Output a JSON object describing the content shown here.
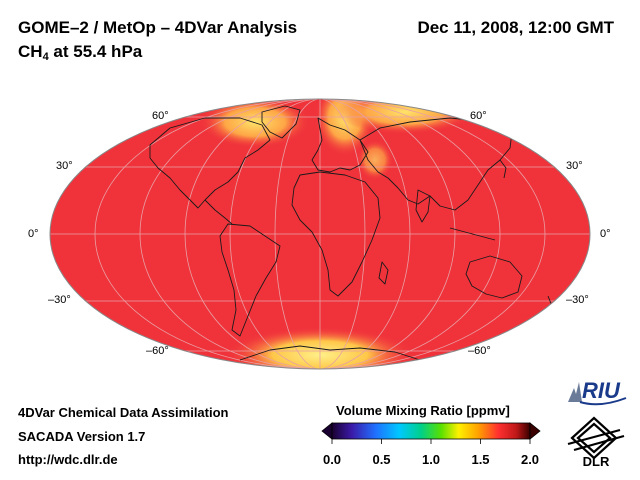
{
  "header": {
    "title": "GOME–2 / MetOp – 4DVar Analysis",
    "date": "Dec 11, 2008, 12:00 GMT",
    "species": "CH",
    "species_sub": "4",
    "species_rest": " at 55.4 hPa"
  },
  "map": {
    "projection": "Mollweide",
    "latitude_labels": {
      "n60": "60°",
      "n30": "30°",
      "eq": "0°",
      "s30": "–30°",
      "s60": "–60°"
    },
    "ocean_color": "#f0303a"
  },
  "footer": {
    "line1": "4DVar Chemical Data Assimilation",
    "line2": "SACADA Version 1.7",
    "line3": "http://wdc.dlr.de"
  },
  "colorbar": {
    "title": "Volume Mixing Ratio [ppmv]",
    "ticks": [
      "0.0",
      "0.5",
      "1.0",
      "1.5",
      "2.0"
    ],
    "range": [
      0.0,
      2.0
    ]
  },
  "logos": {
    "riu": "RIU",
    "dlr": "DLR"
  }
}
